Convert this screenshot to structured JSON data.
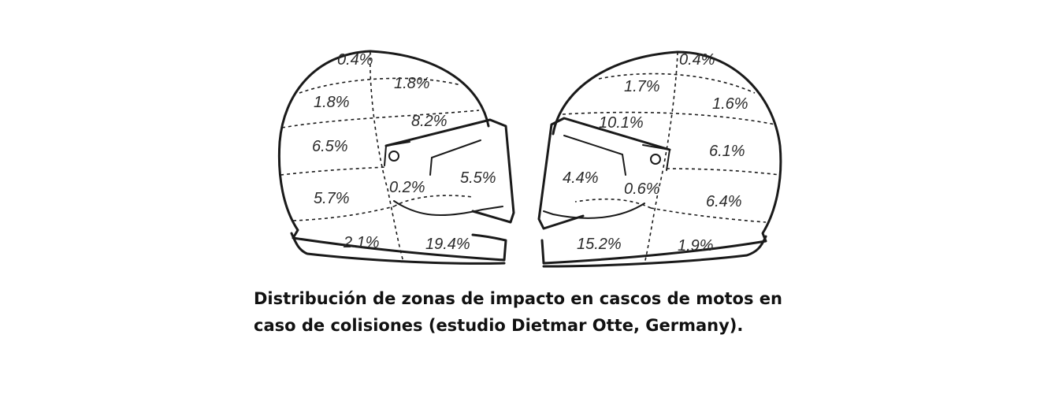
{
  "helmets": [
    {
      "side": "left-profile-facing-right",
      "zones": [
        {
          "zone": "top",
          "value": "0.4%"
        },
        {
          "zone": "upper-front",
          "value": "1.8%"
        },
        {
          "zone": "upper-rear",
          "value": "1.8%"
        },
        {
          "zone": "forehead",
          "value": "8.2%"
        },
        {
          "zone": "mid-rear",
          "value": "6.5%"
        },
        {
          "zone": "visor",
          "value": "5.5%"
        },
        {
          "zone": "temple",
          "value": "0.2%"
        },
        {
          "zone": "lower-rear",
          "value": "5.7%"
        },
        {
          "zone": "base-rear",
          "value": "2.1%"
        },
        {
          "zone": "chin-bar",
          "value": "19.4%"
        }
      ]
    },
    {
      "side": "right-profile-facing-left",
      "zones": [
        {
          "zone": "top",
          "value": "0.4%"
        },
        {
          "zone": "upper-front",
          "value": "1.7%"
        },
        {
          "zone": "upper-rear",
          "value": "1.6%"
        },
        {
          "zone": "forehead",
          "value": "10.1%"
        },
        {
          "zone": "mid-rear",
          "value": "6.1%"
        },
        {
          "zone": "visor",
          "value": "4.4%"
        },
        {
          "zone": "temple",
          "value": "0.6%"
        },
        {
          "zone": "lower-rear",
          "value": "6.4%"
        },
        {
          "zone": "chin-bar",
          "value": "15.2%"
        },
        {
          "zone": "base-rear",
          "value": "1.9%"
        }
      ]
    }
  ],
  "caption": {
    "line1": "Distribución de zonas de impacto en cascos de motos en",
    "line2": "caso de colisiones (estudio Dietmar Otte, Germany)."
  },
  "colors": {
    "ink": "#1a1a1a",
    "background": "#ffffff"
  }
}
